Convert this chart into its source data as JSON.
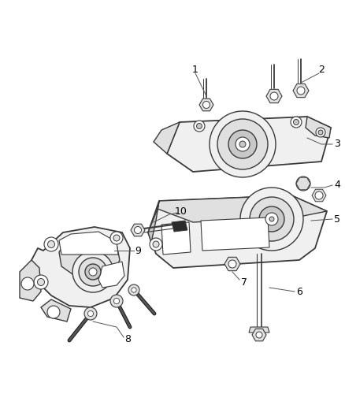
{
  "background_color": "#ffffff",
  "line_color": "#3a3a3a",
  "label_color": "#000000",
  "fill_light": "#f0f0f0",
  "fill_mid": "#e0e0e0",
  "fill_dark": "#c8c8c8",
  "fill_bracket": "#d8d0c0",
  "fill_black": "#2a2a2a",
  "figsize": [
    4.38,
    5.33
  ],
  "dpi": 100
}
